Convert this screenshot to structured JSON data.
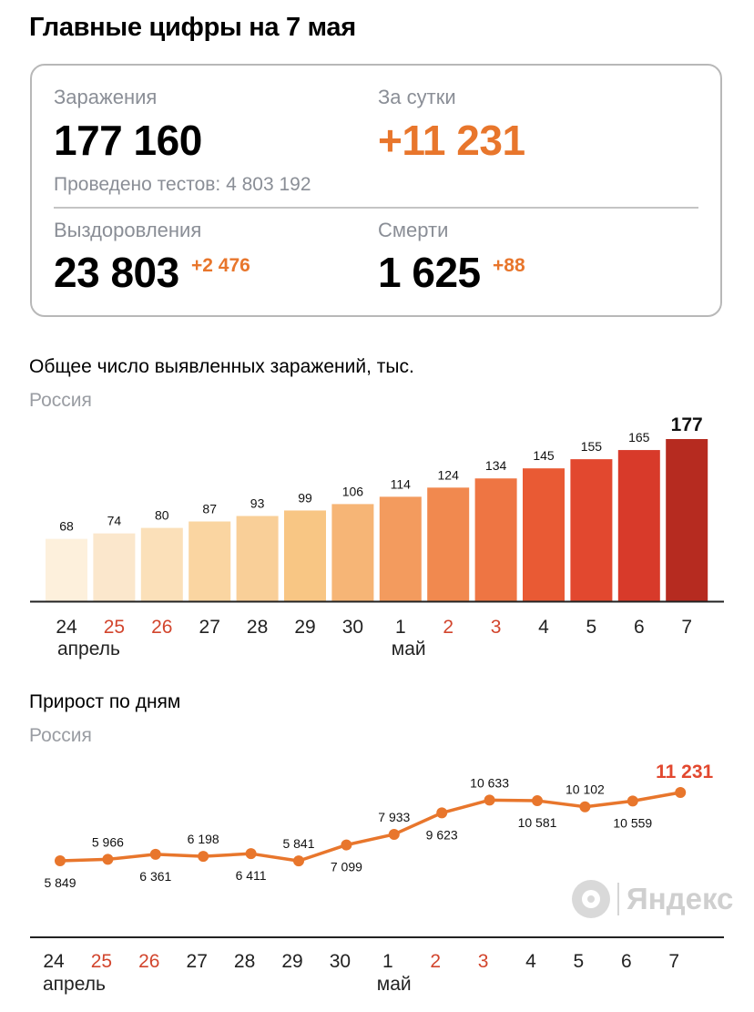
{
  "header": {
    "title": "Главные цифры на 7 мая"
  },
  "summary": {
    "infections_label": "Заражения",
    "infections_value": "177 160",
    "daily_label": "За сутки",
    "daily_value": "+11 231",
    "tests_text": "Проведено тестов: 4 803 192",
    "recoveries_label": "Выздоровления",
    "recoveries_value": "23 803",
    "recoveries_delta": "+2 476",
    "deaths_label": "Смерти",
    "deaths_value": "1 625",
    "deaths_delta": "+88"
  },
  "colors": {
    "accent_orange": "#e8762c",
    "weekend_red": "#d2452d",
    "line_color": "#e8762c",
    "bar_gradient": [
      "#fdf0dc",
      "#fbe7cc",
      "#fbe0b9",
      "#fad5a1",
      "#f9cf98",
      "#f8c684",
      "#f6b576",
      "#f39b5e",
      "#f1894f",
      "#ee7543",
      "#e95a34",
      "#e2482f",
      "#d83a2a",
      "#b62b20"
    ]
  },
  "watermark": {
    "text": "Яндекс",
    "icon": "yandex-logo-icon"
  },
  "chart_data": [
    {
      "type": "bar",
      "title": "Общее число выявленных заражений, тыс.",
      "subtitle": "Россия",
      "categories": [
        "24",
        "25",
        "26",
        "27",
        "28",
        "29",
        "30",
        "1",
        "2",
        "3",
        "4",
        "5",
        "6",
        "7"
      ],
      "weekend": [
        false,
        true,
        true,
        false,
        false,
        false,
        false,
        false,
        true,
        true,
        false,
        false,
        false,
        false
      ],
      "month_labels": [
        {
          "index": 0,
          "text": "апрель"
        },
        {
          "index": 7,
          "text": "май"
        }
      ],
      "values": [
        68,
        74,
        80,
        87,
        93,
        99,
        106,
        114,
        124,
        134,
        145,
        155,
        165,
        177
      ],
      "value_labels": [
        "68",
        "74",
        "80",
        "87",
        "93",
        "99",
        "106",
        "114",
        "124",
        "134",
        "145",
        "155",
        "165",
        "177"
      ],
      "ylim": [
        0,
        177
      ]
    },
    {
      "type": "line",
      "title": "Прирост по дням",
      "subtitle": "Россия",
      "categories": [
        "24",
        "25",
        "26",
        "27",
        "28",
        "29",
        "30",
        "1",
        "2",
        "3",
        "4",
        "5",
        "6",
        "7"
      ],
      "weekend": [
        false,
        true,
        true,
        false,
        false,
        false,
        false,
        false,
        true,
        true,
        false,
        false,
        false,
        false
      ],
      "month_labels": [
        {
          "index": 0,
          "text": "апрель"
        },
        {
          "index": 7,
          "text": "май"
        }
      ],
      "values": [
        5849,
        5966,
        6361,
        6198,
        6411,
        5841,
        7099,
        7933,
        9623,
        10633,
        10581,
        10102,
        10559,
        11231
      ],
      "value_labels": [
        "5 849",
        "5 966",
        "6 361",
        "6 198",
        "6 411",
        "5 841",
        "7 099",
        "7 933",
        "9 623",
        "10 633",
        "10 581",
        "10 102",
        "10 559",
        "11 231"
      ],
      "label_above": [
        false,
        true,
        false,
        true,
        false,
        true,
        false,
        true,
        false,
        true,
        false,
        true,
        false,
        true
      ]
    }
  ]
}
